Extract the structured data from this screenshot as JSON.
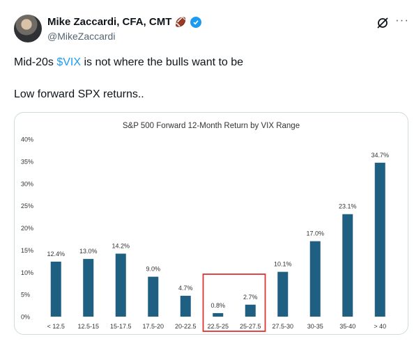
{
  "author": {
    "name": "Mike Zaccardi, CFA, CMT",
    "handle": "@MikeZaccardi",
    "emoji": "🏈",
    "avatar_icon": "avatar-photo"
  },
  "header_icons": {
    "grok": "grok-icon",
    "more": "···"
  },
  "tweet": {
    "line1_prefix": "Mid-20s ",
    "cashtag": "$VIX",
    "line1_suffix": " is not where the bulls want to be",
    "line2": "Low forward SPX returns.."
  },
  "colors": {
    "bar": "#1f5f82",
    "cashtag": "#1d9bf0",
    "highlight": "#e03232"
  },
  "chart_data": {
    "type": "bar",
    "title": "S&P 500 Forward 12-Month Return by VIX Range",
    "categories": [
      "< 12.5",
      "12.5-15",
      "15-17.5",
      "17.5-20",
      "20-22.5",
      "22.5-25",
      "25-27.5",
      "27.5-30",
      "30-35",
      "35-40",
      "> 40"
    ],
    "values": [
      12.4,
      13.0,
      14.2,
      9.0,
      4.7,
      0.8,
      2.7,
      10.1,
      17.0,
      23.1,
      34.7
    ],
    "data_labels": [
      "12.4%",
      "13.0%",
      "14.2%",
      "9.0%",
      "4.7%",
      "0.8%",
      "2.7%",
      "10.1%",
      "17.0%",
      "23.1%",
      "34.7%"
    ],
    "yticks": [
      "0%",
      "5%",
      "10%",
      "15%",
      "20%",
      "25%",
      "30%",
      "35%",
      "40%"
    ],
    "ylim": [
      0,
      40
    ],
    "grid": false,
    "highlighted_categories": [
      "22.5-25",
      "25-27.5"
    ]
  }
}
